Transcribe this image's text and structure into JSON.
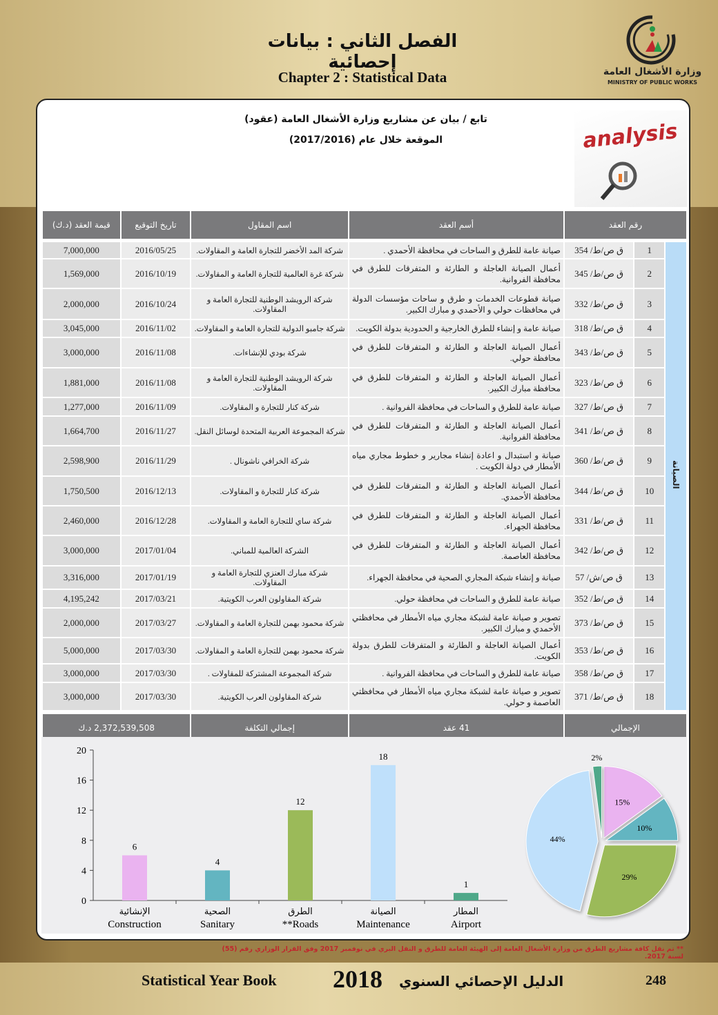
{
  "header": {
    "ar_title": "الفصل الثاني : بيانات إحصائية",
    "en_title": "Chapter 2 : Statistical Data",
    "logo_ar": "وزارة الأشغال العامة",
    "logo_en": "MINISTRY OF PUBLIC WORKS"
  },
  "table_title": {
    "line1": "تابع / بيان عن مشاريع وزارة الأشغال العامة (عقود)",
    "line2": "الموقعة خلال عام (2017/2016)",
    "image_word": "analysis"
  },
  "table": {
    "headers": [
      "رقم العقد",
      "أسم العقد",
      "اسم المقاول",
      "تاريخ التوقيع",
      "قيمة العقد (د.ك)"
    ],
    "side_label": "الصيانة",
    "rows": [
      [
        "1",
        "ق ص/ط/ 354",
        "صيانة عامة للطرق و الساحات في محافظة الأحمدي .",
        "شركة المد الأخضر للتجارة العامة و المقاولات.",
        "2016/05/25",
        "7,000,000"
      ],
      [
        "2",
        "ق ص/ط/ 345",
        "أعمال الصيانة العاجلة و الطارئة و المتفرقات للطرق في محافظة الفروانية.",
        "شركة غرة العالمية للتجارة العامة و المقاولات.",
        "2016/10/19",
        "1,569,000"
      ],
      [
        "3",
        "ق ص/ط/ 332",
        "صيانة قطوعات الخدمات و طرق و ساحات مؤسسات الدولة في محافظات حولي و الأحمدي و مبارك الكبير.",
        "شركة الرويشد الوطنية للتجارة العامة و المقاولات.",
        "2016/10/24",
        "2,000,000"
      ],
      [
        "4",
        "ق ص/ط/ 318",
        "صيانة عامة و إنشاء للطرق الخارجية و الحدودية بدولة الكويت.",
        "شركة جامبو الدولية للتجارة العامة و المقاولات.",
        "2016/11/02",
        "3,045,000"
      ],
      [
        "5",
        "ق ص/ط/ 343",
        "أعمال الصيانة العاجلة و الطارئة و المتفرقات للطرق في محافظة حولي.",
        "شركة بودي للإنشاءات.",
        "2016/11/08",
        "3,000,000"
      ],
      [
        "6",
        "ق ص/ط/ 323",
        "أعمال الصيانة العاجلة و الطارئة و المتفرقات للطرق في محافظة مبارك الكبير.",
        "شركة الرويشد الوطنية للتجارة العامة و المقاولات.",
        "2016/11/08",
        "1,881,000"
      ],
      [
        "7",
        "ق ص/ط/ 327",
        "صيانة عامة للطرق و الساحات في محافظة الفروانية .",
        "شركة كنار للتجارة و المقاولات.",
        "2016/11/09",
        "1,277,000"
      ],
      [
        "8",
        "ق ص/ط/ 341",
        "أعمال الصيانة العاجلة و الطارئة و المتفرقات للطرق في محافظة الفروانية.",
        "شركة المجموعة العربية المتحدة لوسائل النقل.",
        "2016/11/27",
        "1,664,700"
      ],
      [
        "9",
        "ق ص/ط/ 360",
        "صيانة و استبدال و اعادة إنشاء مجارير و خطوط مجاري مياه الأمطار في دولة الكويت .",
        "شركة الخرافي ناشونال .",
        "2016/11/29",
        "2,598,900"
      ],
      [
        "10",
        "ق ص/ط/ 344",
        "أعمال الصيانة العاجلة و الطارئة و المتفرقات للطرق في محافظة الأحمدي.",
        "شركة كنار للتجارة و المقاولات.",
        "2016/12/13",
        "1,750,500"
      ],
      [
        "11",
        "ق ص/ط/ 331",
        "أعمال الصيانة العاجلة و الطارئة و المتفرقات للطرق في محافظة الجهراء.",
        "شركة ساي للتجارة العامة و المقاولات.",
        "2016/12/28",
        "2,460,000"
      ],
      [
        "12",
        "ق ص/ط/ 342",
        "أعمال الصيانة العاجلة و الطارئة و المتفرقات للطرق في محافظة العاصمة.",
        "الشركة العالمية للمباني.",
        "2017/01/04",
        "3,000,000"
      ],
      [
        "13",
        "ق ص/ش/ 57",
        "صيانة و إنشاء شبكة المجاري الصحية في محافظة الجهراء.",
        "شركة مبارك العنزي للتجارة العامة و المقاولات.",
        "2017/01/19",
        "3,316,000"
      ],
      [
        "14",
        "ق ص/ط/ 352",
        "صيانة عامة للطرق و الساحات في محافظة حولي.",
        "شركة المقاولون العرب الكويتية.",
        "2017/03/21",
        "4,195,242"
      ],
      [
        "15",
        "ق ص/ط/ 373",
        "تصوير و صيانة عامة لشبكة مجاري مياه الأمطار في محافظتي الأحمدي و مبارك الكبير.",
        "شركة محمود بهمن للتجارة العامة و المقاولات.",
        "2017/03/27",
        "2,000,000"
      ],
      [
        "16",
        "ق ص/ط/ 353",
        "أعمال الصيانة العاجلة و الطارئة و المتفرقات للطرق بدولة الكويت.",
        "شركة محمود بهمن للتجارة العامة و المقاولات.",
        "2017/03/30",
        "5,000,000"
      ],
      [
        "17",
        "ق ص/ط/ 358",
        "صيانة عامة للطرق و الساحات في محافظة الفروانية .",
        "شركة المجموعة المشتركة للمقاولات .",
        "2017/03/30",
        "3,000,000"
      ],
      [
        "18",
        "ق ص/ط/ 371",
        "تصوير و صيانة عامة لشبكة مجاري مياه الأمطار في محافظتي العاصمة و حولي.",
        "شركة المقاولون العرب الكويتية.",
        "2017/03/30",
        "3,000,000"
      ]
    ],
    "total": {
      "label": "الإجمالي",
      "count": "41 عقد",
      "cost_label": "إجمالي التكلفة",
      "cost": "2,372,539,508 د.ك"
    }
  },
  "chart_data": [
    {
      "type": "bar",
      "categories": [
        "الإنشائية Construction",
        "الصحية Sanitary",
        "الطرق **Roads",
        "الصيانة Maintenance",
        "المطار Airport"
      ],
      "categories_ar": [
        "الإنشائية",
        "الصحية",
        "الطرق",
        "الصيانة",
        "المطار"
      ],
      "categories_en": [
        "Construction",
        "Sanitary",
        "**Roads",
        "Maintenance",
        "Airport"
      ],
      "values": [
        6,
        4,
        12,
        18,
        1
      ],
      "ylim": [
        0,
        20
      ],
      "yticks": [
        "0",
        "4",
        "8",
        "12",
        "16",
        "20"
      ],
      "colors": [
        "#eab3f0",
        "#63b5c1",
        "#9bba59",
        "#bfe0fb",
        "#4fa889"
      ]
    },
    {
      "type": "pie",
      "values": [
        15,
        10,
        29,
        44,
        2
      ],
      "labels": [
        "15%",
        "10%",
        "29%",
        "44%",
        "2%"
      ],
      "colors": [
        "#eab3f0",
        "#63b5c1",
        "#9bba59",
        "#bfe0fb",
        "#4fa889"
      ]
    }
  ],
  "footnote": "** تم نقل كافة مشاريع الطرق من وزارة الأشغال العامة إلى الهيئة العامة للطرق و النقل البري في نوفمبر 2017 وفق القرار الوزاري رقم (55) لسنة 2017.",
  "footer": {
    "en": "Statistical Year Book",
    "year": "2018",
    "ar": "الدليل الإحصائي السنوي",
    "page": "248"
  }
}
